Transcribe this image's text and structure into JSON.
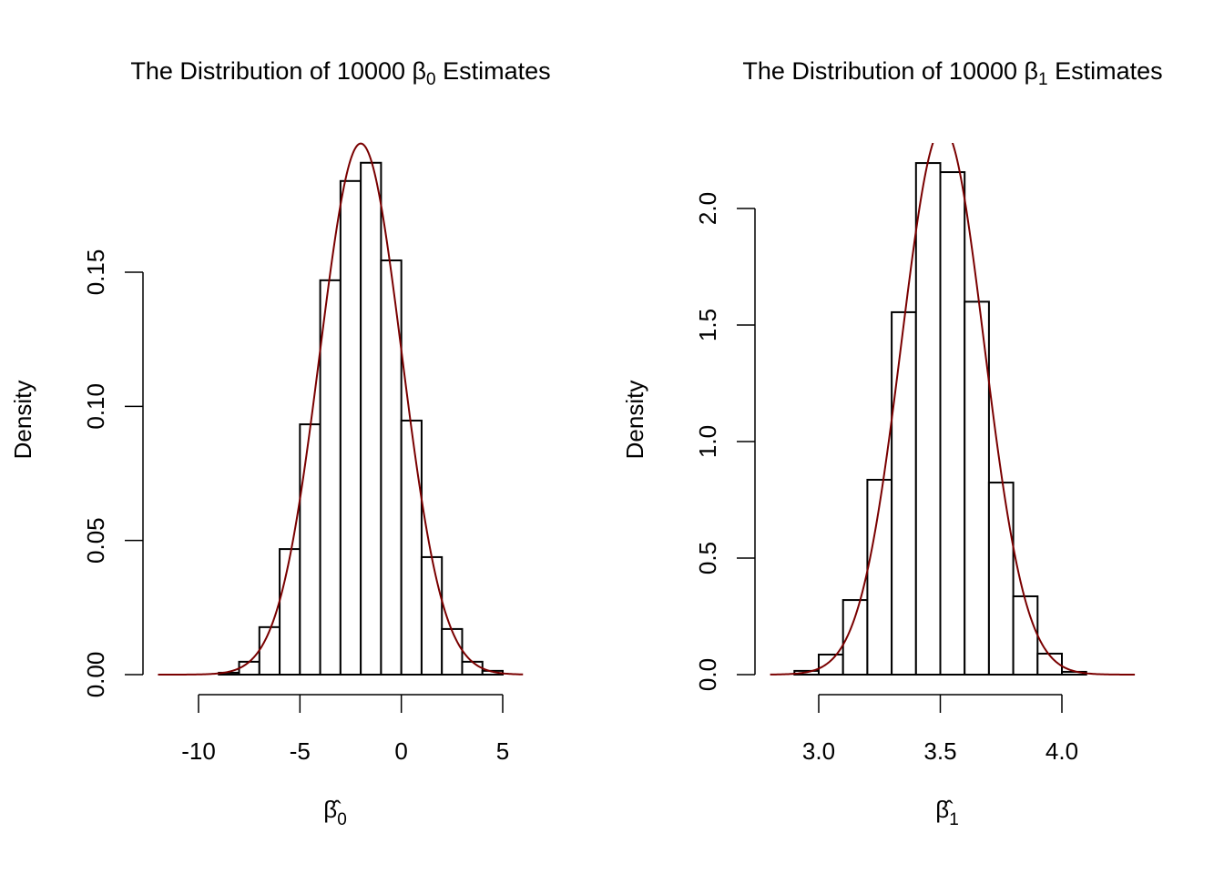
{
  "chart_data": [
    {
      "type": "bar",
      "subtype": "histogram-with-density",
      "title_parts": [
        "The Distribution of 10000 ",
        "β",
        "0",
        " Estimates"
      ],
      "xlabel_parts": [
        "β̂",
        "0"
      ],
      "ylabel": "Density",
      "xlim": [
        -12,
        6
      ],
      "ylim": [
        0,
        0.2
      ],
      "xticks": [
        -10,
        -5,
        0,
        5
      ],
      "xtick_labels": [
        "-10",
        "-5",
        "0",
        "5"
      ],
      "yticks": [
        0,
        0.05,
        0.1,
        0.15
      ],
      "ytick_labels": [
        "0.00",
        "0.05",
        "0.10",
        "0.15"
      ],
      "bin_edges": [
        -9,
        -8,
        -7,
        -6,
        -5,
        -4,
        -3,
        -2,
        -1,
        0,
        1,
        2,
        3,
        4,
        5
      ],
      "values": [
        0.0007,
        0.0048,
        0.0177,
        0.0468,
        0.0933,
        0.147,
        0.184,
        0.1908,
        0.1544,
        0.0947,
        0.0438,
        0.017,
        0.0048,
        0.0014
      ],
      "density_curve": {
        "mean": -2,
        "sd": 2.015,
        "range": [
          -12,
          6
        ],
        "color": "#7a0000"
      }
    },
    {
      "type": "bar",
      "subtype": "histogram-with-density",
      "title_parts": [
        "The Distribution of 10000 ",
        "β",
        "1",
        " Estimates"
      ],
      "xlabel_parts": [
        "β̂",
        "1"
      ],
      "ylabel": "Density",
      "xlim": [
        2.8,
        4.3
      ],
      "ylim": [
        0,
        2.28
      ],
      "xticks": [
        3.0,
        3.5,
        4.0
      ],
      "xtick_labels": [
        "3.0",
        "3.5",
        "4.0"
      ],
      "yticks": [
        0,
        0.5,
        1.0,
        1.5,
        2.0
      ],
      "ytick_labels": [
        "0.0",
        "0.5",
        "1.0",
        "1.5",
        "2.0"
      ],
      "bin_edges": [
        2.9,
        3.0,
        3.1,
        3.2,
        3.3,
        3.4,
        3.5,
        3.6,
        3.7,
        3.8,
        3.9,
        4.0,
        4.1
      ],
      "values": [
        0.016,
        0.086,
        0.32,
        0.836,
        1.555,
        2.195,
        2.156,
        1.6,
        0.824,
        0.336,
        0.09,
        0.012
      ],
      "density_curve": {
        "mean": 3.51,
        "sd": 0.17,
        "range": [
          2.8,
          4.3
        ],
        "color": "#7a0000"
      }
    }
  ]
}
